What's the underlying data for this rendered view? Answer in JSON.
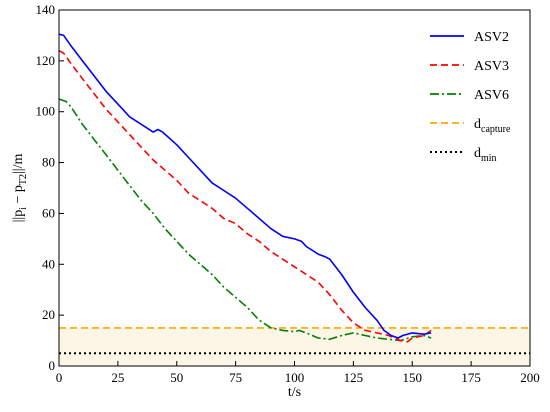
{
  "chart_data": {
    "type": "line",
    "xlabel": "t/s",
    "ylabel_parts": [
      "||p",
      "i",
      " − p",
      "T2",
      "||/m"
    ],
    "xlim": [
      0,
      200
    ],
    "ylim": [
      0,
      140
    ],
    "xticks": [
      0,
      25,
      50,
      75,
      100,
      125,
      150,
      175,
      200
    ],
    "yticks": [
      0,
      20,
      40,
      60,
      80,
      100,
      120,
      140
    ],
    "grid": false,
    "legend_position": "top-right",
    "capture_band_color": "#fbf6e6",
    "series": [
      {
        "name": "ASV2",
        "name_base": "ASV2",
        "name_sub": "",
        "color": "#0000ff",
        "style": "solid",
        "x": [
          0,
          2,
          5,
          10,
          15,
          20,
          25,
          30,
          35,
          40,
          42,
          44,
          50,
          55,
          60,
          65,
          70,
          75,
          80,
          85,
          90,
          95,
          100,
          103,
          105,
          110,
          113,
          115,
          120,
          125,
          130,
          135,
          138,
          141,
          144,
          146,
          150,
          155,
          158
        ],
        "y": [
          130.5,
          130,
          126,
          120,
          114,
          108,
          103,
          98,
          95,
          92,
          93,
          92,
          87,
          82,
          77,
          72,
          69,
          66,
          62,
          58,
          54,
          51,
          50,
          49,
          47,
          44,
          43,
          42,
          36,
          29,
          23,
          18,
          14,
          12,
          11,
          12,
          13,
          12.5,
          13
        ]
      },
      {
        "name": "ASV3",
        "name_base": "ASV3",
        "name_sub": "",
        "color": "#ff0000",
        "style": "dashed",
        "x": [
          0,
          2,
          5,
          10,
          15,
          20,
          25,
          30,
          35,
          40,
          45,
          50,
          55,
          60,
          65,
          70,
          75,
          80,
          85,
          90,
          95,
          100,
          105,
          110,
          115,
          120,
          125,
          130,
          135,
          140,
          145,
          148,
          150,
          155,
          158
        ],
        "y": [
          124,
          123,
          119,
          113,
          107,
          101,
          96,
          91,
          86,
          81,
          77,
          73,
          68,
          65,
          62,
          58,
          56,
          52,
          49,
          45,
          42,
          39,
          36,
          33,
          28,
          22,
          17,
          14,
          13,
          12,
          10,
          9.5,
          11,
          12,
          14
        ]
      },
      {
        "name": "ASV6",
        "name_base": "ASV6",
        "name_sub": "",
        "color": "#008000",
        "style": "dashdot",
        "x": [
          0,
          3,
          5,
          10,
          15,
          20,
          25,
          30,
          35,
          40,
          45,
          50,
          55,
          60,
          65,
          70,
          75,
          80,
          85,
          90,
          95,
          100,
          102,
          105,
          110,
          115,
          120,
          125,
          130,
          135,
          140,
          145,
          150,
          155,
          158
        ],
        "y": [
          105,
          104,
          102,
          95,
          89,
          83,
          77,
          71,
          65,
          60,
          54,
          49,
          44,
          40,
          36,
          31,
          27,
          23,
          18,
          15,
          14,
          13.5,
          14,
          13,
          11,
          10.5,
          12,
          13,
          12,
          11,
          10.5,
          10,
          11.5,
          12,
          11
        ]
      },
      {
        "name": "dcapture",
        "name_base": "d",
        "name_sub": "capture",
        "color": "#ffa500",
        "style": "dashed",
        "x": [
          0,
          200
        ],
        "y": [
          15,
          15
        ]
      },
      {
        "name": "dmin",
        "name_base": "d",
        "name_sub": "min",
        "color": "#000000",
        "style": "dotted",
        "x": [
          0,
          200
        ],
        "y": [
          5,
          5
        ]
      }
    ]
  }
}
